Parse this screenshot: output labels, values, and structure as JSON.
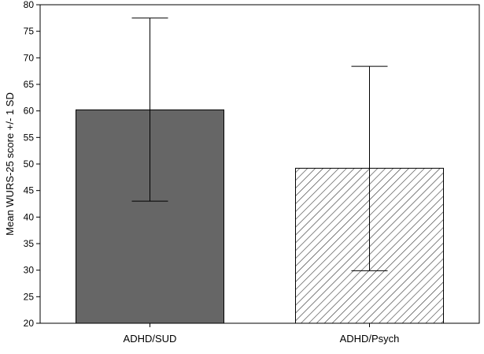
{
  "chart_data": {
    "type": "bar",
    "categories": [
      "ADHD/SUD",
      "ADHD/Psych"
    ],
    "values": [
      60.2,
      49.2
    ],
    "error_bars": {
      "lower": [
        43.0,
        29.9
      ],
      "upper": [
        77.5,
        68.4
      ]
    },
    "ylabel": "Mean WURS-25 score +/- 1 SD",
    "ylim": [
      20,
      80
    ],
    "yticks": [
      20,
      25,
      30,
      35,
      40,
      45,
      50,
      55,
      60,
      65,
      70,
      75,
      80
    ],
    "grid": false,
    "bar_styles": [
      "solid",
      "hatched"
    ],
    "colors": {
      "solid_fill": "#666666",
      "hatch_line": "#333333",
      "outline": "#000000"
    }
  }
}
